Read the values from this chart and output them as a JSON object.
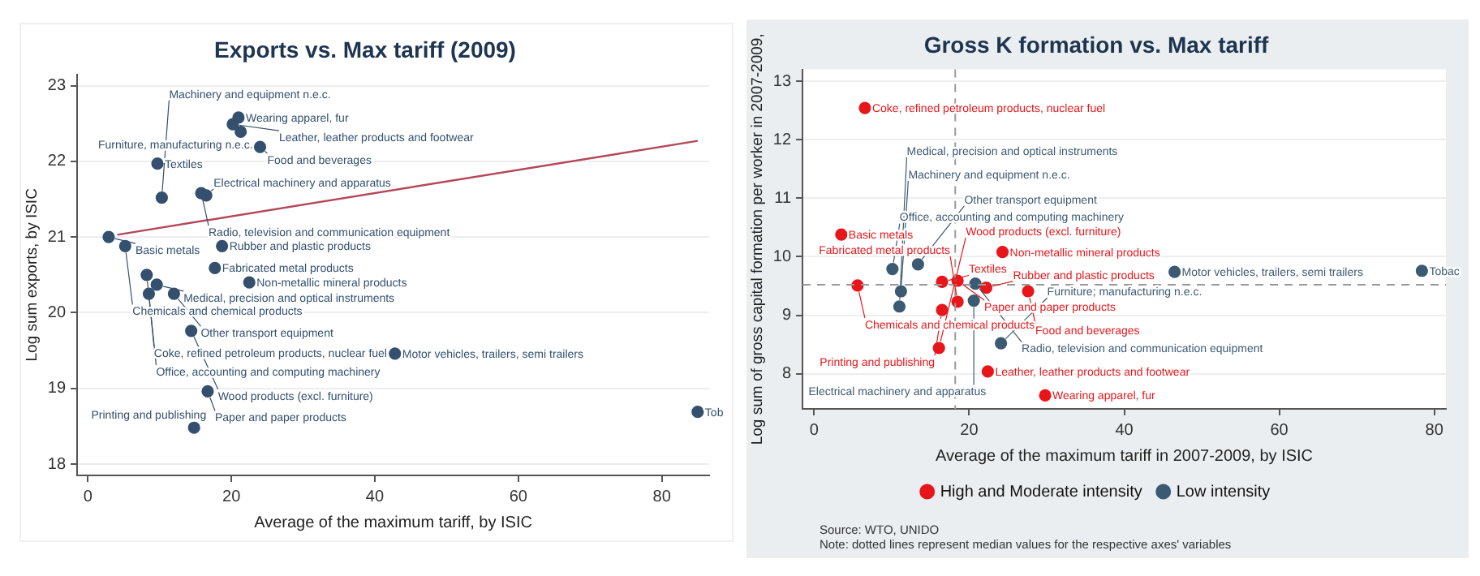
{
  "chart_data": [
    {
      "type": "scatter",
      "title": "Exports vs. Max tariff (2009)",
      "xlabel": "Average of the maximum tariff, by ISIC",
      "ylabel": "Log sum exports, by ISIC",
      "xlim": [
        -1.5,
        86.6
      ],
      "ylim": [
        17.85,
        23.15
      ],
      "xticks": [
        0,
        20,
        40,
        60,
        80
      ],
      "yticks": [
        18,
        19,
        20,
        21,
        22,
        23
      ],
      "grid": "y",
      "marker": "circle",
      "series": [
        {
          "color": "#34506e",
          "x": [
            21.0,
            20.2,
            21.3,
            24.0,
            9.7,
            15.8,
            10.3,
            16.5,
            2.9,
            5.2,
            18.7,
            8.2,
            17.7,
            9.6,
            22.5,
            8.5,
            12.0,
            14.4,
            42.8,
            16.7,
            14.8,
            85.0
          ],
          "values": [
            22.58,
            22.49,
            22.39,
            22.19,
            21.97,
            21.58,
            21.52,
            21.55,
            21.0,
            20.88,
            20.88,
            20.5,
            20.59,
            20.37,
            20.4,
            20.25,
            20.25,
            19.76,
            19.46,
            18.96,
            18.48,
            18.69
          ]
        },
        {
          "type": "line",
          "marker": "none",
          "color": "#b5475a",
          "x": [
            4.1,
            85.0
          ],
          "values": [
            21.03,
            22.27
          ]
        }
      ],
      "annotations": [
        {
          "text": "Wearing apparel, fur",
          "x": 21.0,
          "y": 22.58
        },
        {
          "text": "Leather, leather products and footwear",
          "x": 20.2,
          "y": 22.49
        },
        {
          "text": "Furniture, manufacturing n.e.c.",
          "x": 21.3,
          "y": 22.39
        },
        {
          "text": "Food and beverages",
          "x": 24.0,
          "y": 22.19
        },
        {
          "text": "Textiles",
          "x": 9.7,
          "y": 21.97
        },
        {
          "text": "Radio, television and communication equipment",
          "x": 15.8,
          "y": 21.58
        },
        {
          "text": "Machinery and equipment n.e.c.",
          "x": 10.3,
          "y": 21.52
        },
        {
          "text": "Electrical machinery and apparatus",
          "x": 16.5,
          "y": 21.55
        },
        {
          "text": "Basic metals",
          "x": 2.9,
          "y": 21.0
        },
        {
          "text": "Chemicals and chemical products",
          "x": 5.2,
          "y": 20.88
        },
        {
          "text": "Rubber and plastic products",
          "x": 18.7,
          "y": 20.88
        },
        {
          "text": "Coke, refined petroleum products, nuclear fuel",
          "x": 8.2,
          "y": 20.5
        },
        {
          "text": "Fabricated metal products",
          "x": 17.7,
          "y": 20.59
        },
        {
          "text": "Medical, precision and optical instruments",
          "x": 9.6,
          "y": 20.37
        },
        {
          "text": "Non-metallic mineral products",
          "x": 22.5,
          "y": 20.4
        },
        {
          "text": "Office, accounting and computing machinery",
          "x": 8.5,
          "y": 20.25
        },
        {
          "text": "Other transport equipment",
          "x": 12.0,
          "y": 20.25
        },
        {
          "text": "Wood products (excl. furniture)",
          "x": 14.4,
          "y": 19.76
        },
        {
          "text": "Motor vehicles, trailers, semi trailers",
          "x": 42.8,
          "y": 19.46
        },
        {
          "text": "Paper and paper products",
          "x": 16.7,
          "y": 18.96
        },
        {
          "text": "Printing and publishing",
          "x": 14.8,
          "y": 18.48
        },
        {
          "text": "Tob",
          "x": 85.0,
          "y": 18.69
        }
      ]
    },
    {
      "type": "scatter",
      "title": "Gross K formation vs. Max tariff",
      "xlabel": "Average of the maximum tariff in 2007-2009, by ISIC",
      "ylabel": "Log sum of gross capital formation per worker in 2007-2009,",
      "xlim": [
        -1.5,
        81.5
      ],
      "ylim": [
        7.4,
        13.2
      ],
      "xticks": [
        0,
        20,
        40,
        60,
        80
      ],
      "yticks": [
        8,
        9,
        10,
        11,
        12,
        13
      ],
      "grid": "y",
      "marker": "circle",
      "legend": "bottom",
      "series": [
        {
          "name": "High and Moderate intensity",
          "color": "#e8161b",
          "x": [
            6.55,
            3.5,
            24.3,
            5.6,
            16.5,
            18.5,
            22.2,
            27.6,
            18.5,
            16.5,
            16.1,
            22.4,
            29.8
          ],
          "values": [
            12.54,
            10.38,
            10.08,
            9.51,
            9.57,
            9.59,
            9.47,
            9.41,
            9.23,
            9.09,
            8.44,
            8.04,
            7.63
          ]
        },
        {
          "name": "Low intensity",
          "color": "#3d5a73",
          "x": [
            10.1,
            13.4,
            46.5,
            78.4,
            11.2,
            20.8,
            11.0,
            20.6,
            24.1
          ],
          "values": [
            9.79,
            9.87,
            9.74,
            9.76,
            9.41,
            9.54,
            9.15,
            9.25,
            8.52
          ]
        }
      ],
      "ref_lines": [
        {
          "axis": "x",
          "value": 18.2,
          "color": "#9a9a9a",
          "line_style": "dashed"
        },
        {
          "axis": "y",
          "value": 9.52,
          "color": "#9a9a9a",
          "line_style": "dashed"
        }
      ],
      "annotations": [
        {
          "text": "Coke, refined petroleum products, nuclear fuel",
          "x": 6.55,
          "y": 12.54
        },
        {
          "text": "Basic metals",
          "x": 3.5,
          "y": 10.38
        },
        {
          "text": "Non-metallic mineral products",
          "x": 24.3,
          "y": 10.08
        },
        {
          "text": "Chemicals and chemical products",
          "x": 5.6,
          "y": 9.51
        },
        {
          "text": "Textiles",
          "x": 16.5,
          "y": 9.57
        },
        {
          "text": "Paper and paper products",
          "x": 18.5,
          "y": 9.59
        },
        {
          "text": "Rubber and plastic products",
          "x": 22.2,
          "y": 9.47
        },
        {
          "text": "Food and beverages",
          "x": 27.6,
          "y": 9.41
        },
        {
          "text": "Fabricated metal products",
          "x": 18.5,
          "y": 9.23
        },
        {
          "text": "Printing and publishing",
          "x": 16.5,
          "y": 9.09
        },
        {
          "text": "Wood products (excl. furniture)",
          "x": 16.1,
          "y": 8.44
        },
        {
          "text": "Leather, leather products and footwear",
          "x": 22.4,
          "y": 8.04
        },
        {
          "text": "Wearing apparel, fur",
          "x": 29.8,
          "y": 7.63
        },
        {
          "text": "Office, accounting and computing machinery",
          "x": 10.1,
          "y": 9.79
        },
        {
          "text": "Other transport equipment",
          "x": 13.4,
          "y": 9.87
        },
        {
          "text": "Motor vehicles, trailers, semi trailers",
          "x": 46.5,
          "y": 9.74
        },
        {
          "text": "Tobac",
          "x": 78.4,
          "y": 9.76
        },
        {
          "text": "Machinery and equipment n.e.c.",
          "x": 11.2,
          "y": 9.41
        },
        {
          "text": "Radio, television and communication equipment",
          "x": 20.8,
          "y": 9.54
        },
        {
          "text": "Medical, precision and optical instruments",
          "x": 11.0,
          "y": 9.15
        },
        {
          "text": "Electrical machinery and apparatus",
          "x": 20.6,
          "y": 9.25
        },
        {
          "text": "Furniture; manufacturing n.e.c.",
          "x": 24.1,
          "y": 8.52
        },
        "Source: WTO, UNIDO",
        "Note: dotted lines represent median values for the respective axes' variables"
      ]
    }
  ]
}
